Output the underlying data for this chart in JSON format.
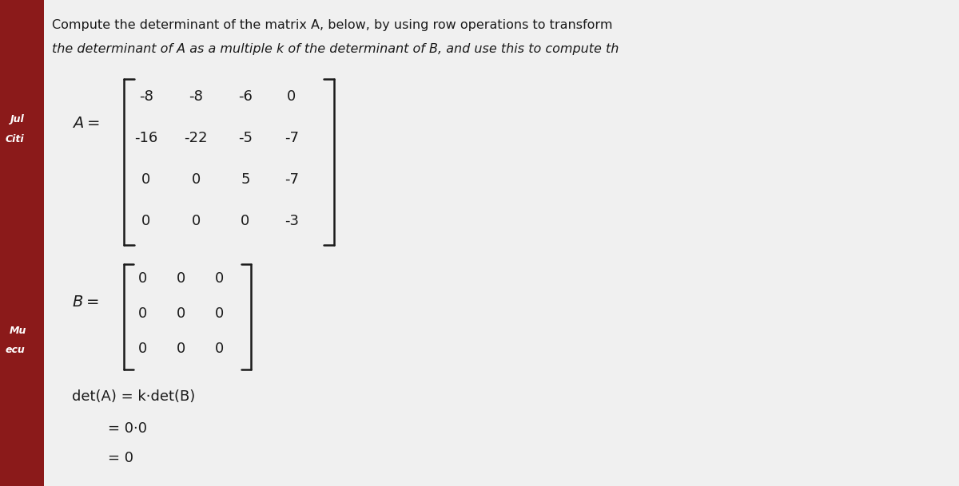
{
  "title_line1": "Compute the determinant of the matrix A, below, by using row operations to transform",
  "title_line2": "the determinant of A as a multiple k of the determinant of B, and use this to compute th",
  "matrix_A_label": "A =",
  "matrix_A": [
    [
      "-8",
      "-8",
      "-6",
      "0"
    ],
    [
      "-16",
      "-22",
      "-5",
      "-7"
    ],
    [
      "0",
      "0",
      "5",
      "-7"
    ],
    [
      "0",
      "0",
      "0",
      "-3"
    ]
  ],
  "matrix_B_label": "B =",
  "matrix_B": [
    [
      "0",
      "0",
      "0"
    ],
    [
      "0",
      "0",
      "0"
    ],
    [
      "0",
      "0",
      "0"
    ]
  ],
  "det_line1": "det(A) = k·det(B)",
  "det_line2": "= 0·0",
  "det_line3": "= 0",
  "bg_color": "#f0f0f0",
  "left_bar_color": "#8B1A1A",
  "text_color": "#1a1a1a",
  "side_text1": "Jul",
  "side_text2": "Citi",
  "side_text3": "Mu",
  "side_text4": "ecu"
}
